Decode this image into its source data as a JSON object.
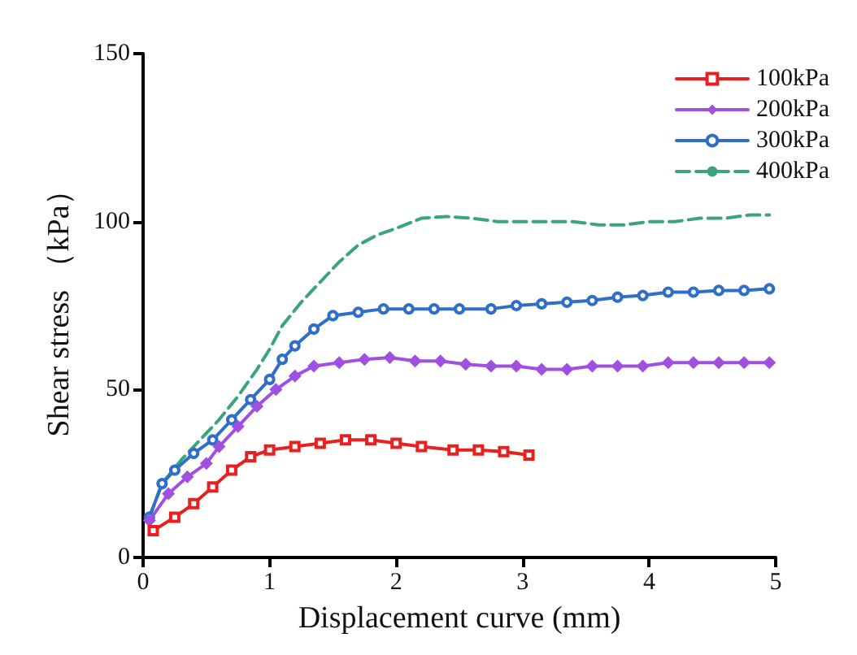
{
  "chart_data": {
    "type": "line",
    "xlabel": "Displacement curve (mm)",
    "ylabel": "Shear stress （kPa）",
    "xlim": [
      0,
      5
    ],
    "xticks": [
      0,
      1,
      2,
      3,
      4,
      5
    ],
    "ylim": [
      0,
      150
    ],
    "yticks": [
      0,
      50,
      100,
      150
    ],
    "grid": false,
    "legend": "top right",
    "series": [
      {
        "name": "100kPa",
        "color": "#e8201f",
        "marker": "square",
        "line_style": "solid",
        "x": [
          0.08,
          0.25,
          0.4,
          0.55,
          0.7,
          0.85,
          1.0,
          1.2,
          1.4,
          1.6,
          1.8,
          2.0,
          2.2,
          2.45,
          2.65,
          2.85,
          3.05
        ],
        "values": [
          8,
          12,
          16,
          21,
          26,
          30,
          32,
          33,
          34,
          35,
          35,
          34,
          33,
          32,
          32,
          31.5,
          30.5
        ]
      },
      {
        "name": "200kPa",
        "color": "#a050e0",
        "marker": "diamond",
        "line_style": "solid",
        "x": [
          0.05,
          0.2,
          0.35,
          0.5,
          0.6,
          0.75,
          0.9,
          1.05,
          1.2,
          1.35,
          1.55,
          1.75,
          1.95,
          2.15,
          2.35,
          2.55,
          2.75,
          2.95,
          3.15,
          3.35,
          3.55,
          3.75,
          3.95,
          4.15,
          4.35,
          4.55,
          4.75,
          4.95
        ],
        "values": [
          11,
          19,
          24,
          28,
          33,
          39,
          45,
          50,
          54,
          57,
          58,
          59,
          59.5,
          58.5,
          58.5,
          57.5,
          57,
          57,
          56,
          56,
          57,
          57,
          57,
          58,
          58,
          58,
          58,
          58
        ]
      },
      {
        "name": "300kPa",
        "color": "#2f6fc9",
        "marker": "circle",
        "line_style": "solid",
        "x": [
          0.05,
          0.15,
          0.25,
          0.4,
          0.55,
          0.7,
          0.85,
          1.0,
          1.1,
          1.2,
          1.35,
          1.5,
          1.7,
          1.9,
          2.1,
          2.3,
          2.5,
          2.75,
          2.95,
          3.15,
          3.35,
          3.55,
          3.75,
          3.95,
          4.15,
          4.35,
          4.55,
          4.75,
          4.95
        ],
        "values": [
          12,
          22,
          26,
          31,
          35,
          41,
          47,
          53,
          59,
          63,
          68,
          72,
          73,
          74,
          74,
          74,
          74,
          74,
          75,
          75.5,
          76,
          76.5,
          77.5,
          78,
          79,
          79,
          79.5,
          79.5,
          80
        ]
      },
      {
        "name": "400kPa",
        "color": "#3aa57a",
        "marker": "none",
        "line_style": "dashed",
        "x": [
          0.05,
          0.15,
          0.3,
          0.45,
          0.6,
          0.75,
          0.9,
          1.0,
          1.1,
          1.25,
          1.4,
          1.55,
          1.7,
          1.85,
          2.0,
          2.2,
          2.4,
          2.6,
          2.8,
          3.0,
          3.2,
          3.4,
          3.6,
          3.8,
          4.0,
          4.2,
          4.4,
          4.6,
          4.8,
          4.95
        ],
        "values": [
          12,
          22,
          29,
          35,
          41,
          48,
          56,
          62,
          69,
          76,
          82,
          88,
          93,
          96,
          98,
          101,
          101.5,
          101,
          100,
          100,
          100,
          100,
          99,
          99,
          100,
          100,
          101,
          101,
          102,
          102
        ]
      }
    ]
  }
}
